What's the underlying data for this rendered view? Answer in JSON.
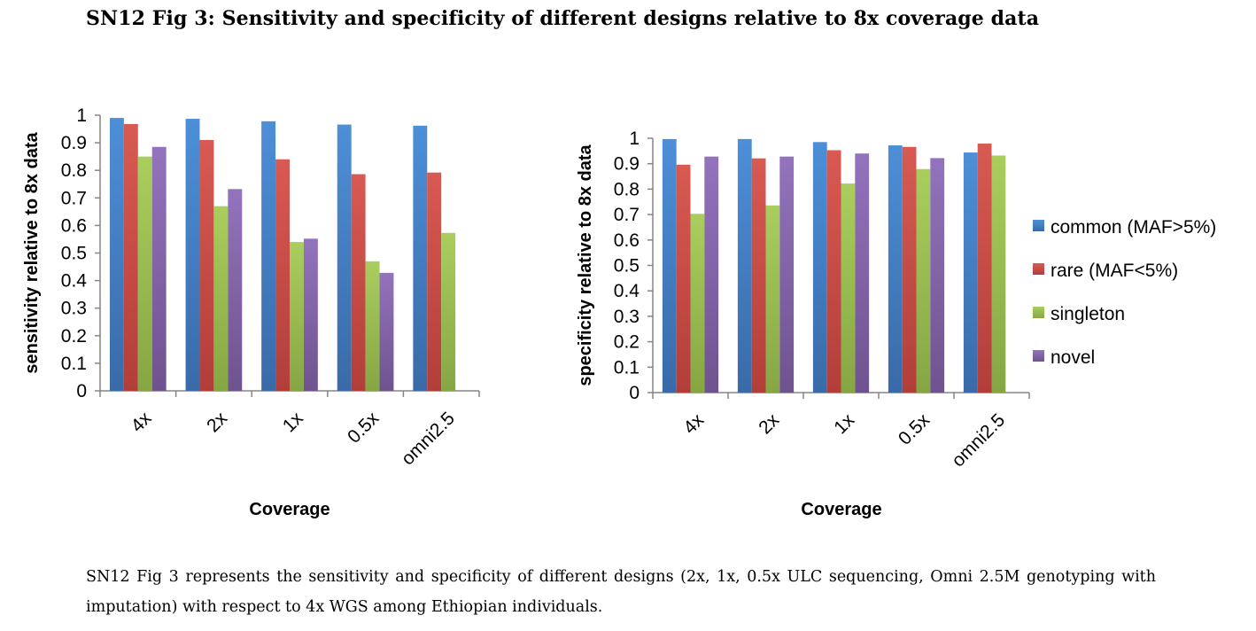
{
  "title": "SN12 Fig 3: Sensitivity and specificity of different designs relative to 8x  coverage data",
  "caption": "SN12 Fig 3 represents the sensitivity and specificity of different designs (2x, 1x, 0.5x ULC sequencing, Omni 2.5M genotyping with imputation) with respect to 4x WGS among Ethiopian individuals.",
  "colors": {
    "common": "#4a7ebb",
    "rare": "#be4b48",
    "singleton": "#98b954",
    "novel": "#7d60a0"
  },
  "chart_data": [
    {
      "type": "bar",
      "title": "",
      "xlabel": "Coverage",
      "ylabel": "sensitivity relative to 8x data",
      "ylim": [
        0,
        1
      ],
      "yticks": [
        "0",
        "0.1",
        "0.2",
        "0.3",
        "0.4",
        "0.5",
        "0.6",
        "0.7",
        "0.8",
        "0.9",
        "1"
      ],
      "grid": false,
      "categories": [
        "4x",
        "2x",
        "1x",
        "0.5x",
        "omni2.5"
      ],
      "series": [
        {
          "name": "common (MAF>5%)",
          "values": [
            0.99,
            0.987,
            0.978,
            0.966,
            0.962
          ]
        },
        {
          "name": "rare (MAF<5%)",
          "values": [
            0.968,
            0.91,
            0.84,
            0.786,
            0.792
          ]
        },
        {
          "name": "singleton",
          "values": [
            0.85,
            0.67,
            0.54,
            0.47,
            0.573
          ]
        },
        {
          "name": "novel",
          "values": [
            0.885,
            0.732,
            0.552,
            0.428,
            null
          ]
        }
      ]
    },
    {
      "type": "bar",
      "title": "",
      "xlabel": "Coverage",
      "ylabel": "specificity relative to 8x data",
      "ylim": [
        0,
        1
      ],
      "yticks": [
        "0",
        "0.1",
        "0.2",
        "0.3",
        "0.4",
        "0.5",
        "0.6",
        "0.7",
        "0.8",
        "0.9",
        "1"
      ],
      "grid": false,
      "legend": "right",
      "categories": [
        "4x",
        "2x",
        "1x",
        "0.5x",
        "omni2.5"
      ],
      "series": [
        {
          "name": "common (MAF>5%)",
          "values": [
            0.997,
            0.997,
            0.985,
            0.972,
            0.944
          ]
        },
        {
          "name": "rare (MAF<5%)",
          "values": [
            0.896,
            0.921,
            0.953,
            0.966,
            0.979
          ]
        },
        {
          "name": "singleton",
          "values": [
            0.703,
            0.736,
            0.822,
            0.879,
            0.932
          ]
        },
        {
          "name": "novel",
          "values": [
            0.928,
            0.928,
            0.94,
            0.922,
            null
          ]
        }
      ]
    }
  ]
}
